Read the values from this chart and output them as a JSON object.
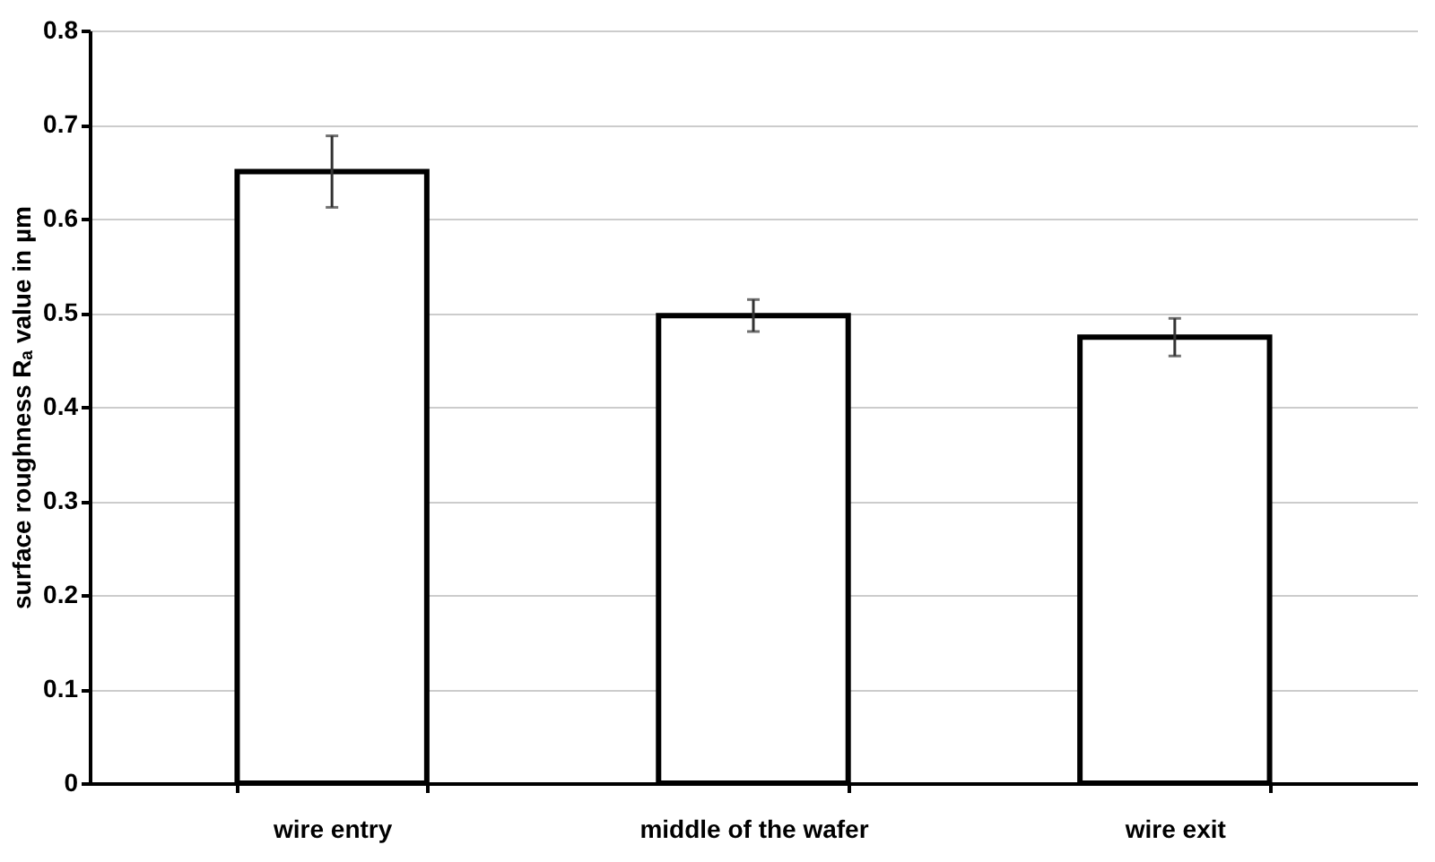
{
  "chart_data": {
    "type": "bar",
    "ylabel": "surface roughness Rₐ value in µm",
    "categories": [
      "wire entry",
      "middle of the wafer",
      "wire exit"
    ],
    "values": [
      0.65,
      0.497,
      0.474
    ],
    "errors": [
      0.038,
      0.017,
      0.02
    ],
    "color": "#ffffff",
    "ylim": [
      0,
      0.8
    ],
    "yticks": [
      0,
      0.1,
      0.2,
      0.3,
      0.4,
      0.5,
      0.6,
      0.7,
      0.8
    ],
    "grid": "y"
  }
}
